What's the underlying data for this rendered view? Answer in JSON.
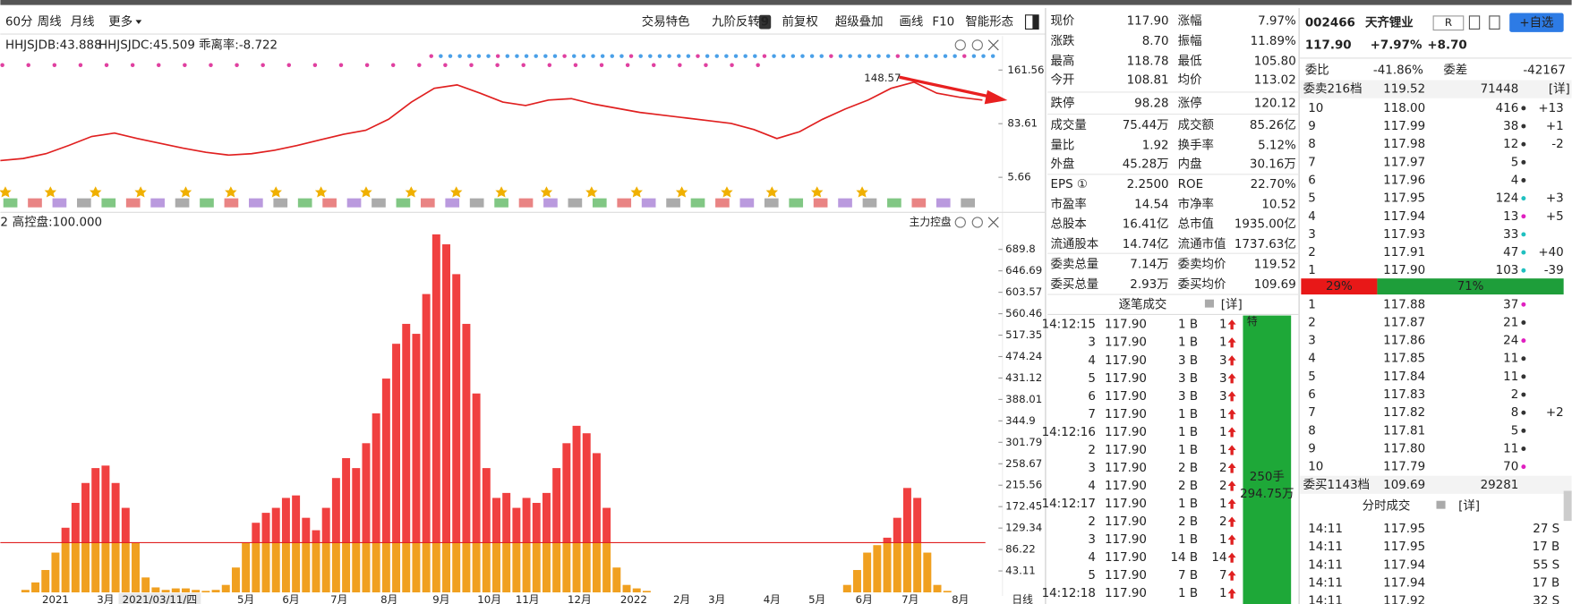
{
  "toolbar": {
    "left": [
      "60分",
      "周线",
      "月线",
      "更多"
    ],
    "right": [
      "交易特色",
      "九阶反转",
      "前复权",
      "超级叠加",
      "画线",
      "F10",
      "智能形态"
    ],
    "badge": "9"
  },
  "upper_chart": {
    "indicators": [
      {
        "text": "HHJSJDB:43.888",
        "color": "#c89a00"
      },
      {
        "text": "HHJSJDC:45.509",
        "color": "#e07000"
      },
      {
        "text": "乖离率:-8.722",
        "color": "#e05050"
      }
    ],
    "ylim": [
      0,
      183.3
    ],
    "yticks": [
      161.56,
      83.61,
      5.66
    ],
    "color": "#e02020",
    "close": [
      30,
      33,
      40,
      52,
      65,
      70,
      62,
      55,
      48,
      42,
      38,
      40,
      45,
      52,
      60,
      68,
      74,
      90,
      115,
      135,
      140,
      128,
      115,
      110,
      118,
      120,
      112,
      106,
      100,
      96,
      92,
      88,
      84,
      75,
      62,
      72,
      90,
      105,
      118,
      135,
      144,
      128,
      122,
      117.9
    ],
    "peak_label": "148.57"
  },
  "lower_chart": {
    "prefix": "2",
    "title": "高控盘:100.000",
    "name": "主力控盘",
    "ylim": [
      0,
      723
    ],
    "yticks": [
      689.8,
      646.69,
      603.57,
      560.46,
      517.35,
      474.24,
      431.12,
      388.01,
      344.9,
      301.79,
      258.67,
      215.56,
      172.45,
      129.34,
      86.22,
      43.11
    ],
    "threshold": 100,
    "colors": {
      "above": "#f04040",
      "below": "#f0a020",
      "threshold": "#e02020"
    },
    "values": [
      0,
      0,
      5,
      20,
      45,
      80,
      130,
      180,
      220,
      250,
      255,
      220,
      170,
      100,
      30,
      10,
      5,
      8,
      8,
      5,
      3,
      5,
      15,
      50,
      100,
      140,
      160,
      170,
      190,
      195,
      150,
      125,
      170,
      230,
      270,
      250,
      300,
      360,
      430,
      500,
      540,
      520,
      600,
      720,
      700,
      640,
      540,
      400,
      250,
      190,
      200,
      170,
      190,
      180,
      200,
      250,
      300,
      335,
      320,
      280,
      170,
      50,
      15,
      8,
      3,
      0,
      0,
      0,
      0,
      0,
      0,
      0,
      0,
      0,
      0,
      0,
      0,
      0,
      0,
      0,
      0,
      0,
      0,
      0,
      15,
      45,
      80,
      95,
      110,
      150,
      210,
      190,
      80,
      15,
      3,
      0,
      0,
      0,
      0
    ],
    "xlabels": [
      "2021",
      "3月",
      "5月",
      "6月",
      "7月",
      "8月",
      "9月",
      "10月",
      "11月",
      "12月",
      "2022",
      "2月",
      "3月",
      "4月",
      "5月",
      "6月",
      "7月",
      "8月",
      "日线"
    ],
    "date_box": "2021/03/11/四"
  },
  "quote": {
    "rows": [
      [
        {
          "l": "现价",
          "v": "117.90",
          "c": "#e02020"
        },
        {
          "l": "涨幅",
          "v": "7.97%",
          "c": "#e02020"
        }
      ],
      [
        {
          "l": "涨跌",
          "v": "8.70",
          "c": "#e02020"
        },
        {
          "l": "振幅",
          "v": "11.89%",
          "c": "#222"
        }
      ],
      [
        {
          "l": "最高",
          "v": "118.78",
          "c": "#e02020"
        },
        {
          "l": "最低",
          "v": "105.80",
          "c": "#109010"
        }
      ],
      [
        {
          "l": "今开",
          "v": "108.81",
          "c": "#109010"
        },
        {
          "l": "均价",
          "v": "113.02",
          "c": "#e02020"
        }
      ],
      [
        {
          "l": "跌停",
          "v": "98.28",
          "c": "#109010"
        },
        {
          "l": "涨停",
          "v": "120.12",
          "c": "#e02020"
        }
      ],
      [
        {
          "l": "成交量",
          "v": "75.44万",
          "c": "#222"
        },
        {
          "l": "成交额",
          "v": "85.26亿",
          "c": "#222"
        }
      ],
      [
        {
          "l": "量比",
          "v": "1.92",
          "c": "#222"
        },
        {
          "l": "换手率",
          "v": "5.12%",
          "c": "#222"
        }
      ],
      [
        {
          "l": "外盘",
          "v": "45.28万",
          "c": "#e02020"
        },
        {
          "l": "内盘",
          "v": "30.16万",
          "c": "#109010"
        }
      ],
      [
        {
          "l": "EPS ①",
          "v": "2.2500",
          "c": "#222"
        },
        {
          "l": "ROE",
          "v": "22.70%",
          "c": "#222"
        }
      ],
      [
        {
          "l": "市盈率",
          "v": "14.54",
          "c": "#222"
        },
        {
          "l": "市净率",
          "v": "10.52",
          "c": "#222"
        }
      ],
      [
        {
          "l": "总股本",
          "v": "16.41亿",
          "c": "#222"
        },
        {
          "l": "总市值",
          "v": "1935.00亿",
          "c": "#222"
        }
      ],
      [
        {
          "l": "流通股本",
          "v": "14.74亿",
          "c": "#222"
        },
        {
          "l": "流通市值",
          "v": "1737.63亿",
          "c": "#222"
        }
      ],
      [
        {
          "l": "委卖总量",
          "v": "7.14万",
          "c": "#222"
        },
        {
          "l": "委卖均价",
          "v": "119.52",
          "c": "#e02020"
        }
      ],
      [
        {
          "l": "委买总量",
          "v": "2.93万",
          "c": "#222"
        },
        {
          "l": "委买均价",
          "v": "109.69",
          "c": "#e02020"
        }
      ]
    ]
  },
  "trades": {
    "title": "逐笔成交",
    "detail": "[详]",
    "tag": "特",
    "summary": [
      "250手",
      "294.75万"
    ],
    "rows": [
      [
        "14:12:15",
        "117.90",
        "1 B",
        "1"
      ],
      [
        "3",
        "117.90",
        "1 B",
        "1"
      ],
      [
        "4",
        "117.90",
        "3 B",
        "3"
      ],
      [
        "5",
        "117.90",
        "3 B",
        "3"
      ],
      [
        "6",
        "117.90",
        "3 B",
        "3"
      ],
      [
        "7",
        "117.90",
        "1 B",
        "1"
      ],
      [
        "14:12:16",
        "117.90",
        "1 B",
        "1"
      ],
      [
        "2",
        "117.90",
        "1 B",
        "1"
      ],
      [
        "3",
        "117.90",
        "2 B",
        "2"
      ],
      [
        "4",
        "117.90",
        "2 B",
        "2"
      ],
      [
        "14:12:17",
        "117.90",
        "1 B",
        "1"
      ],
      [
        "2",
        "117.90",
        "2 B",
        "2"
      ],
      [
        "3",
        "117.90",
        "1 B",
        "1"
      ],
      [
        "4",
        "117.90",
        "14 B",
        "14"
      ],
      [
        "5",
        "117.90",
        "7 B",
        "7"
      ],
      [
        "14:12:18",
        "117.90",
        "1 B",
        "1"
      ]
    ]
  },
  "book": {
    "code": "002466",
    "name": "天齐锂业",
    "r": "R",
    "watch": "+自选",
    "price": "117.90",
    "pct": "+7.97%",
    "chg": "+8.70",
    "ratio_label": "委比",
    "ratio": "-41.86%",
    "diff_label": "委差",
    "diff": "-42167",
    "sell_head": [
      "委卖216档",
      "119.52",
      "71448",
      "[详]"
    ],
    "sells": [
      {
        "level": "10",
        "price": "118.00",
        "volume": "416",
        "dot": "#333",
        "change": "+13",
        "cc": "#e02020"
      },
      {
        "level": "9",
        "price": "117.99",
        "volume": "38",
        "dot": "#333",
        "change": "+1",
        "cc": "#e02020"
      },
      {
        "level": "8",
        "price": "117.98",
        "volume": "12",
        "dot": "#333",
        "change": "-2",
        "cc": "#109010"
      },
      {
        "level": "7",
        "price": "117.97",
        "volume": "5",
        "dot": "#333"
      },
      {
        "level": "6",
        "price": "117.96",
        "volume": "4",
        "dot": "#333"
      },
      {
        "level": "5",
        "price": "117.95",
        "volume": "124",
        "dot": "#20c0c0",
        "change": "+3",
        "cc": "#e02020"
      },
      {
        "level": "4",
        "price": "117.94",
        "volume": "13",
        "dot": "#e020c0",
        "change": "+5",
        "cc": "#e02020"
      },
      {
        "level": "3",
        "price": "117.93",
        "volume": "33",
        "dot": "#20c0c0"
      },
      {
        "level": "2",
        "price": "117.91",
        "volume": "47",
        "dot": "#20c0c0",
        "change": "+40",
        "cc": "#e02020"
      },
      {
        "level": "1",
        "price": "117.90",
        "volume": "103",
        "dot": "#20c0c0",
        "change": "-39",
        "cc": "#109010"
      }
    ],
    "split": {
      "values": [
        29,
        71
      ],
      "value_labels": [
        "29%",
        "71%"
      ],
      "colors": [
        "#e81818",
        "#1e9e3a"
      ]
    },
    "buys": [
      {
        "level": "1",
        "price": "117.88",
        "volume": "37",
        "dot": "#e020c0"
      },
      {
        "level": "2",
        "price": "117.87",
        "volume": "21",
        "dot": "#333"
      },
      {
        "level": "3",
        "price": "117.86",
        "volume": "24",
        "dot": "#e020c0"
      },
      {
        "level": "4",
        "price": "117.85",
        "volume": "11",
        "dot": "#333"
      },
      {
        "level": "5",
        "price": "117.84",
        "volume": "11",
        "dot": "#333"
      },
      {
        "level": "6",
        "price": "117.83",
        "volume": "2",
        "dot": "#333"
      },
      {
        "level": "7",
        "price": "117.82",
        "volume": "8",
        "dot": "#333",
        "change": "+2",
        "cc": "#e02020"
      },
      {
        "level": "8",
        "price": "117.81",
        "volume": "5",
        "dot": "#333"
      },
      {
        "level": "9",
        "price": "117.80",
        "volume": "11",
        "dot": "#333"
      },
      {
        "level": "10",
        "price": "117.79",
        "volume": "70",
        "dot": "#e020c0"
      }
    ],
    "buy_head": [
      "委买1143档",
      "109.69",
      "29281"
    ],
    "minute_title": "分时成交",
    "minute_detail": "[详]",
    "minute": [
      [
        "14:11",
        "117.95",
        "27 S",
        "#109010"
      ],
      [
        "14:11",
        "117.95",
        "17 B",
        "#e02020"
      ],
      [
        "14:11",
        "117.94",
        "55 S",
        "#109010"
      ],
      [
        "14:11",
        "117.94",
        "17 B",
        "#e02020"
      ],
      [
        "14:11",
        "117.92",
        "32 S",
        "#109010"
      ]
    ]
  }
}
